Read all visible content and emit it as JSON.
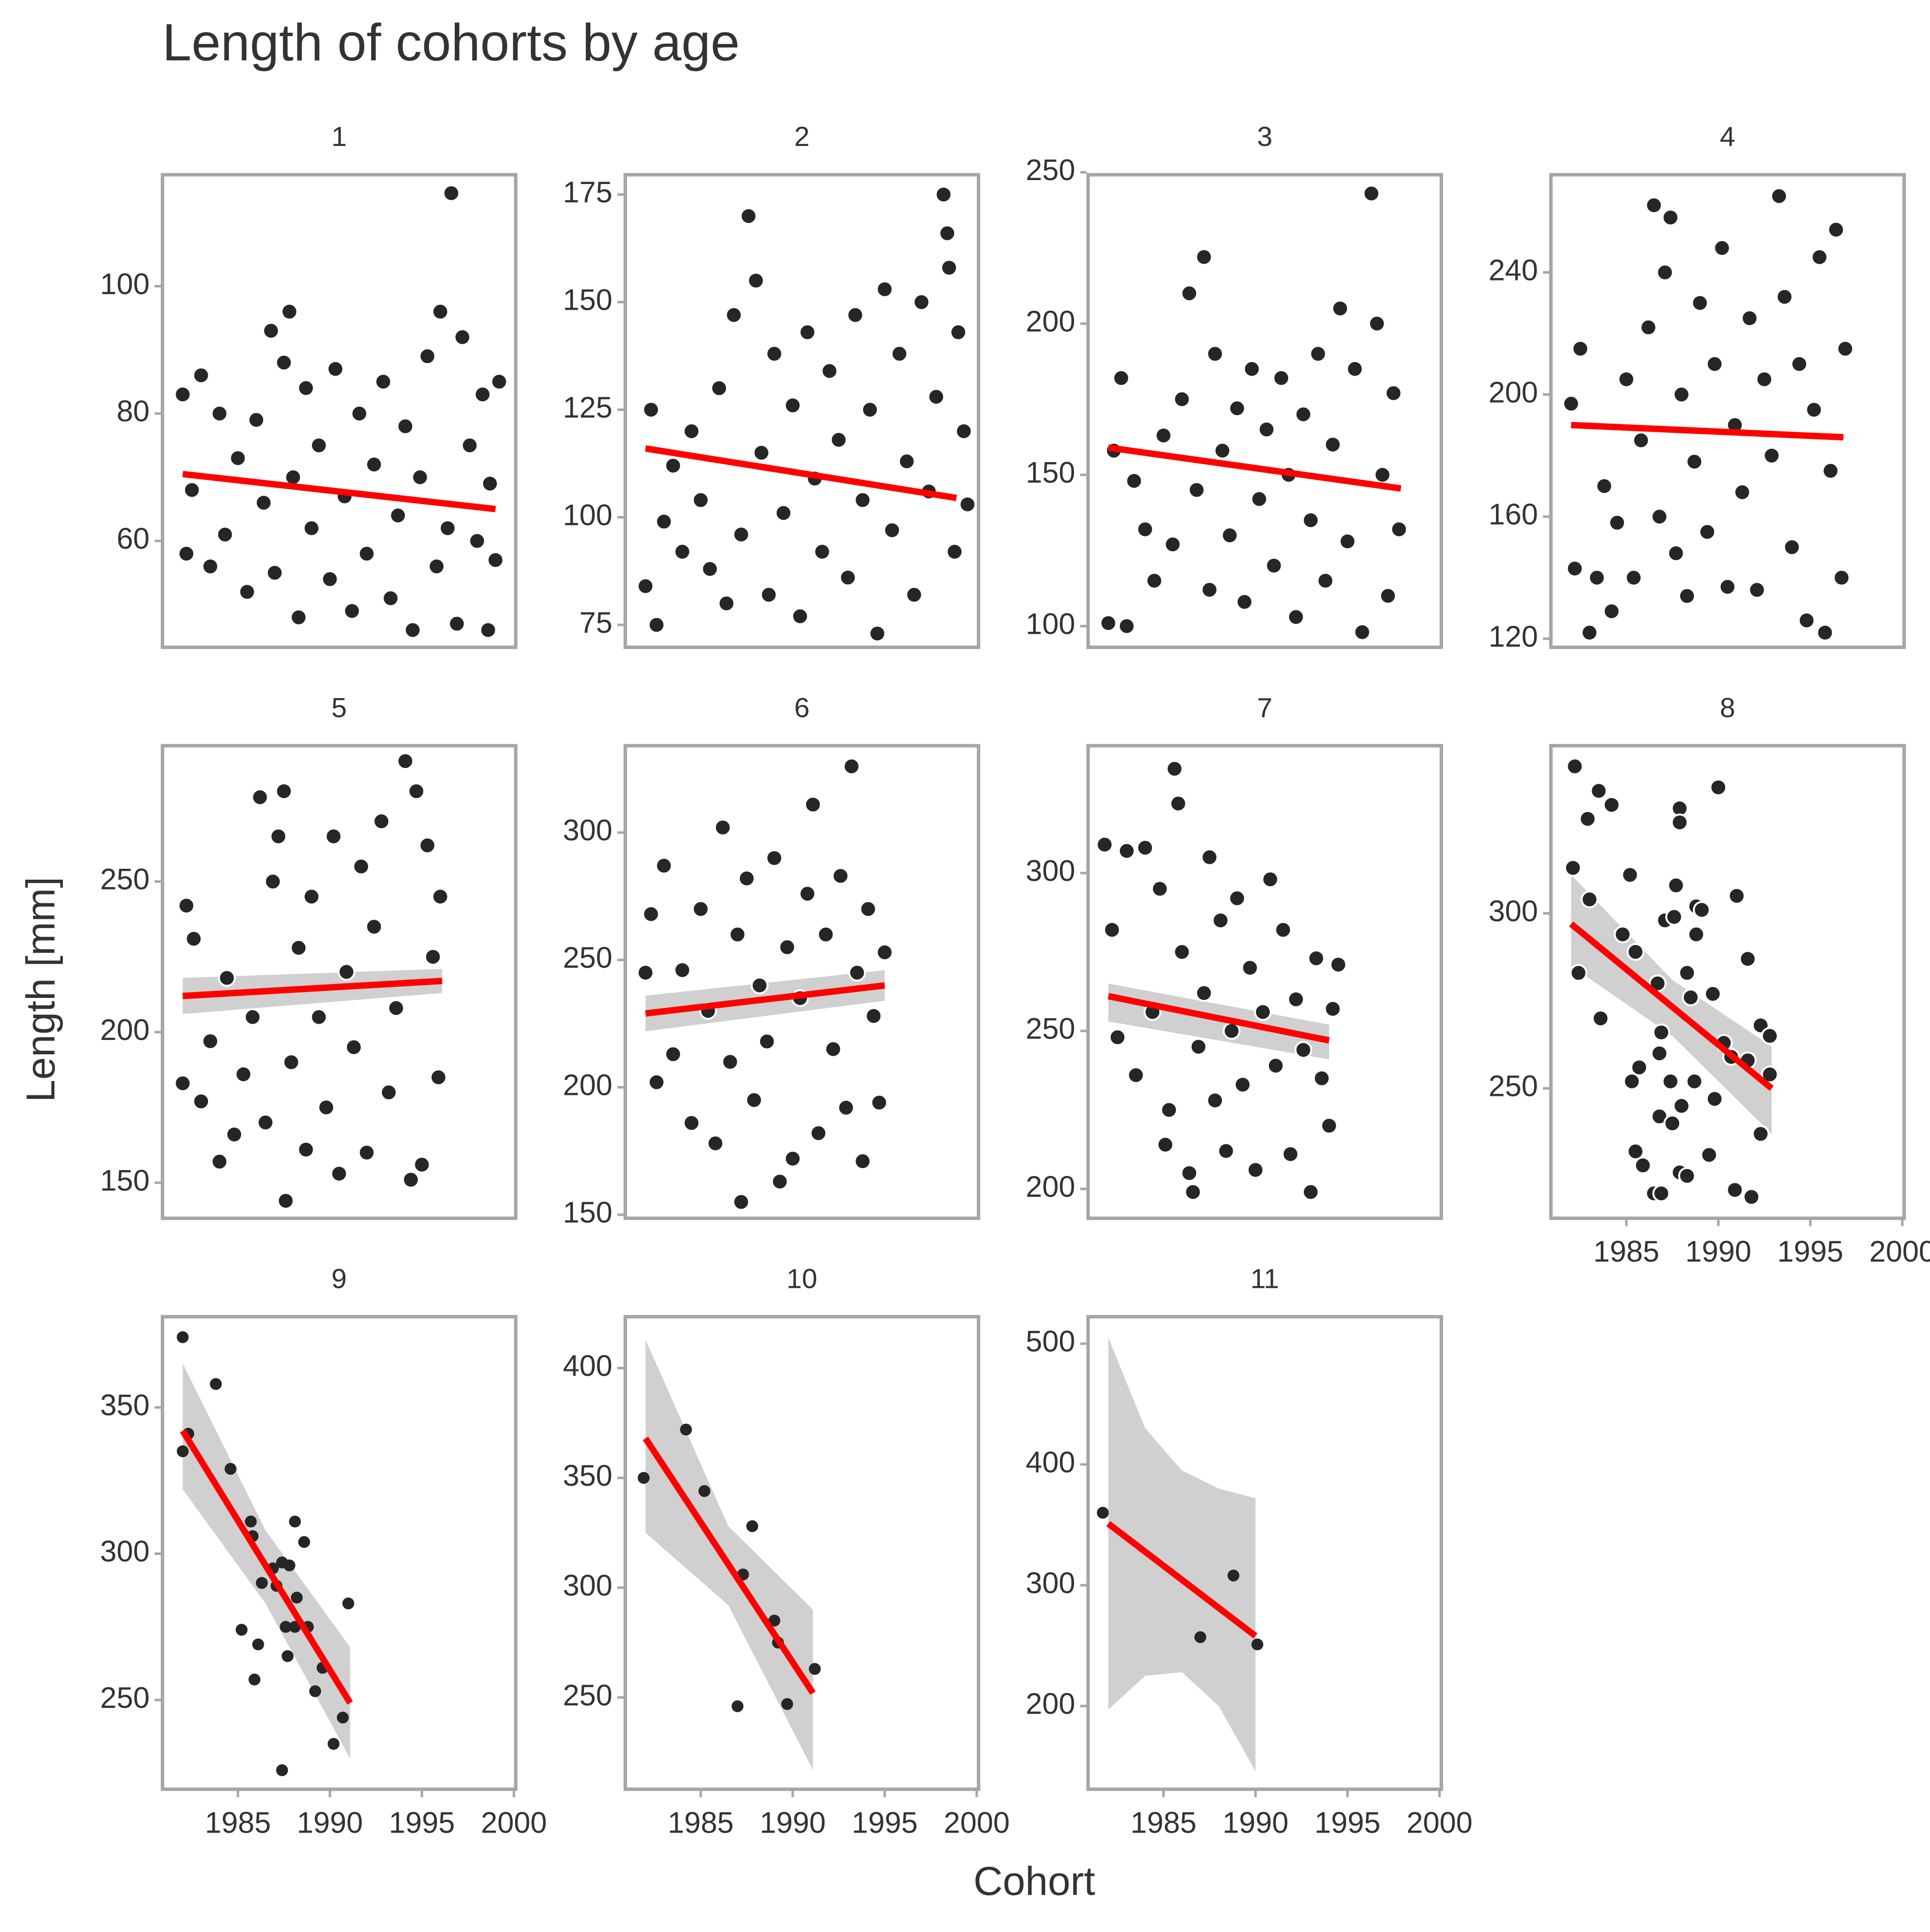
{
  "figure": {
    "title": "Length of cohorts by age",
    "x_label": "Cohort",
    "y_label": "Length [mm]",
    "point_color": "#262626",
    "fit_color": "#ff0000",
    "band_color": "#c8c8c8"
  },
  "chart_data": [
    {
      "type": "scatter",
      "title": "1",
      "xlim": [
        1980.9,
        2000.1
      ],
      "ylim": [
        43.3,
        117.5
      ],
      "yticks": [
        60,
        80,
        100
      ],
      "x": [
        1982,
        1982.2,
        1982.5,
        1983,
        1983.5,
        1984,
        1984.3,
        1985,
        1985.5,
        1986,
        1986.4,
        1986.8,
        1987,
        1987.5,
        1987.8,
        1988,
        1988.3,
        1988.7,
        1989,
        1989.4,
        1990,
        1990.3,
        1990.8,
        1991.2,
        1991.6,
        1992,
        1992.4,
        1992.9,
        1993.3,
        1993.7,
        1994.1,
        1994.5,
        1994.9,
        1995.3,
        1995.8,
        1996,
        1996.4,
        1996.6,
        1996.9,
        1997.2,
        1997.6,
        1998,
        1998.3,
        1998.7,
        1999,
        1999.2,
        1998.6
      ],
      "y": [
        83,
        58,
        68,
        86,
        56,
        80,
        61,
        73,
        52,
        79,
        66,
        93,
        55,
        88,
        96,
        70,
        48,
        84,
        62,
        75,
        54,
        87,
        67,
        49,
        80,
        58,
        72,
        85,
        51,
        64,
        78,
        46,
        70,
        89,
        56,
        96,
        62,
        114.6,
        47,
        92,
        75,
        60,
        83,
        69,
        57,
        85,
        46
      ],
      "fit": {
        "x": [
          1982,
          1999
        ],
        "y": [
          70.5,
          65
        ]
      }
    },
    {
      "type": "scatter",
      "title": "2",
      "xlim": [
        1980.9,
        2000.1
      ],
      "ylim": [
        69.8,
        179.6
      ],
      "yticks": [
        75,
        100,
        125,
        150,
        175
      ],
      "x": [
        1982,
        1982.3,
        1982.6,
        1983,
        1983.5,
        1984,
        1984.5,
        1985,
        1985.5,
        1986,
        1986.4,
        1986.8,
        1987.2,
        1987.6,
        1988,
        1988.3,
        1988.7,
        1989,
        1989.5,
        1990,
        1990.4,
        1990.8,
        1991.2,
        1991.6,
        1992,
        1992.5,
        1993,
        1993.4,
        1993.8,
        1994.2,
        1994.6,
        1995,
        1995.4,
        1995.8,
        1996.2,
        1996.6,
        1997,
        1997.4,
        1997.8,
        1998.2,
        1998.4,
        1998.5,
        1998.8,
        1999,
        1999.3,
        1999.5
      ],
      "y": [
        84,
        125,
        75,
        99,
        112,
        92,
        120,
        104,
        88,
        130,
        80,
        147,
        96,
        170,
        155,
        115,
        82,
        138,
        101,
        126,
        77,
        143,
        109,
        92,
        134,
        118,
        86,
        147,
        104,
        125,
        73,
        153,
        97,
        138,
        113,
        82,
        150,
        106,
        128,
        175,
        166,
        158,
        92,
        143,
        120,
        103
      ],
      "fit": {
        "x": [
          1982,
          1998.9
        ],
        "y": [
          116,
          104.5
        ]
      }
    },
    {
      "type": "scatter",
      "title": "3",
      "xlim": [
        1980.9,
        2000.1
      ],
      "ylim": [
        93.0,
        249.2
      ],
      "yticks": [
        100,
        150,
        200,
        250
      ],
      "x": [
        1982,
        1982.3,
        1982.7,
        1983,
        1983.4,
        1984,
        1984.5,
        1985,
        1985.5,
        1986,
        1986.4,
        1986.8,
        1987.2,
        1987.5,
        1987.8,
        1988.2,
        1988.6,
        1989,
        1989.4,
        1989.8,
        1990.2,
        1990.6,
        1991,
        1991.4,
        1991.8,
        1992.2,
        1992.6,
        1993,
        1993.4,
        1993.8,
        1994.2,
        1994.6,
        1995,
        1995.4,
        1995.8,
        1996.3,
        1996.6,
        1996.9,
        1997.2,
        1997.5,
        1997.8
      ],
      "y": [
        101,
        158,
        182,
        100,
        148,
        132,
        115,
        163,
        127,
        175,
        210,
        145,
        222,
        112,
        190,
        158,
        130,
        172,
        108,
        185,
        142,
        165,
        120,
        182,
        150,
        103,
        170,
        135,
        190,
        115,
        160,
        205,
        128,
        185,
        98,
        243,
        200,
        150,
        110,
        177,
        132
      ],
      "fit": {
        "x": [
          1982,
          1997.9
        ],
        "y": [
          159,
          145.5
        ]
      }
    },
    {
      "type": "scatter",
      "title": "4",
      "xlim": [
        1980.9,
        2000.1
      ],
      "ylim": [
        117.2,
        272
      ],
      "yticks": [
        120,
        160,
        200,
        240
      ],
      "x": [
        1982,
        1982.2,
        1982.5,
        1983,
        1983.4,
        1983.8,
        1984.2,
        1984.5,
        1985,
        1985.4,
        1985.8,
        1986.2,
        1986.5,
        1986.8,
        1987.1,
        1987.4,
        1987.7,
        1988,
        1988.3,
        1988.7,
        1989,
        1989.4,
        1989.8,
        1990.2,
        1990.5,
        1990.9,
        1991.3,
        1991.7,
        1992.1,
        1992.5,
        1992.9,
        1993.3,
        1993.6,
        1994,
        1994.4,
        1994.8,
        1995.2,
        1995.5,
        1995.8,
        1996.1,
        1996.4,
        1996.7,
        1996.9
      ],
      "y": [
        197,
        143,
        215,
        122,
        140,
        170,
        129,
        158,
        205,
        140,
        185,
        222,
        262,
        160,
        240,
        258,
        148,
        200,
        134,
        178,
        230,
        155,
        210,
        248,
        137,
        190,
        168,
        225,
        136,
        205,
        180,
        265,
        232,
        150,
        210,
        126,
        195,
        245,
        122,
        175,
        254,
        140,
        215
      ],
      "fit": {
        "x": [
          1982,
          1996.8
        ],
        "y": [
          190,
          186
        ]
      }
    },
    {
      "type": "scatter",
      "title": "5",
      "xlim": [
        1980.9,
        2000.1
      ],
      "ylim": [
        138.2,
        295.1
      ],
      "yticks": [
        150,
        200,
        250
      ],
      "x": [
        1982,
        1982.2,
        1982.6,
        1983,
        1983.5,
        1984,
        1984.4,
        1984.8,
        1985.3,
        1985.8,
        1986.2,
        1986.5,
        1986.9,
        1987.2,
        1987.5,
        1987.6,
        1987.9,
        1988.3,
        1988.7,
        1989,
        1989.4,
        1989.8,
        1990.2,
        1990.5,
        1990.9,
        1991.3,
        1991.7,
        1992,
        1992.4,
        1992.8,
        1993.2,
        1993.6,
        1994.1,
        1994.4,
        1994.7,
        1995,
        1995.3,
        1995.6,
        1995.9,
        1996
      ],
      "y": [
        183,
        242,
        231,
        177,
        197,
        157,
        218,
        166,
        186,
        205,
        278,
        170,
        250,
        265,
        280,
        144,
        190,
        228,
        161,
        245,
        205,
        175,
        265,
        153,
        220,
        195,
        255,
        160,
        235,
        270,
        180,
        208,
        290,
        151,
        280,
        156,
        262,
        225,
        185,
        245
      ],
      "fit": {
        "x": [
          1982,
          1996.1
        ],
        "y": [
          212,
          217
        ]
      },
      "band": {
        "x": [
          1982,
          1996.1
        ],
        "upper": [
          218,
          221
        ],
        "lower": [
          206,
          213
        ]
      }
    },
    {
      "type": "scatter",
      "title": "6",
      "xlim": [
        1980.9,
        2000.1
      ],
      "ylim": [
        148.6,
        334.1
      ],
      "yticks": [
        150,
        200,
        250,
        300
      ],
      "x": [
        1982,
        1982.3,
        1982.6,
        1983,
        1983.5,
        1984,
        1984.5,
        1985,
        1985.4,
        1985.8,
        1986.2,
        1986.6,
        1987,
        1987.2,
        1987.5,
        1987.9,
        1988.2,
        1988.6,
        1989,
        1989.3,
        1989.7,
        1990,
        1990.4,
        1990.8,
        1991.1,
        1991.4,
        1991.8,
        1992.2,
        1992.6,
        1992.9,
        1993.2,
        1993.5,
        1993.8,
        1994.1,
        1994.4,
        1994.7,
        1995
      ],
      "y": [
        245,
        268,
        202,
        287,
        213,
        246,
        186,
        270,
        230,
        178,
        302,
        210,
        260,
        155,
        282,
        195,
        240,
        218,
        290,
        163,
        255,
        172,
        235,
        276,
        311,
        182,
        260,
        215,
        283,
        192,
        326,
        245,
        171,
        270,
        228,
        194,
        253
      ],
      "fit": {
        "x": [
          1982,
          1995
        ],
        "y": [
          229,
          240
        ]
      },
      "band": {
        "x": [
          1982,
          1995
        ],
        "upper": [
          236,
          246
        ],
        "lower": [
          222,
          234
        ]
      }
    },
    {
      "type": "scatter",
      "title": "7",
      "xlim": [
        1980.9,
        2000.1
      ],
      "ylim": [
        190.7,
        340.3
      ],
      "yticks": [
        200,
        250,
        300
      ],
      "x": [
        1981.8,
        1982.2,
        1982.5,
        1983,
        1983.5,
        1984,
        1984.4,
        1984.8,
        1985.1,
        1985.3,
        1985.6,
        1985.8,
        1986,
        1986.4,
        1986.6,
        1986.9,
        1987.2,
        1987.5,
        1987.8,
        1988.1,
        1988.4,
        1988.7,
        1989,
        1989.3,
        1989.7,
        1990,
        1990.4,
        1990.8,
        1991.1,
        1991.5,
        1991.9,
        1992.2,
        1992.6,
        1993,
        1993.3,
        1993.6,
        1994,
        1994.2,
        1994.5
      ],
      "y": [
        309,
        282,
        248,
        307,
        236,
        308,
        256,
        295,
        214,
        225,
        333,
        322,
        275,
        205,
        199,
        245,
        262,
        305,
        228,
        285,
        212,
        250,
        292,
        233,
        270,
        206,
        256,
        298,
        239,
        282,
        211,
        260,
        244,
        199,
        273,
        235,
        220,
        257,
        271
      ],
      "fit": {
        "x": [
          1982,
          1994
        ],
        "y": [
          261,
          247
        ]
      },
      "band": {
        "x": [
          1982,
          1994
        ],
        "upper": [
          265,
          252
        ],
        "lower": [
          253,
          241
        ]
      }
    },
    {
      "type": "scatter",
      "title": "8",
      "xlim": [
        1980.9,
        2000.1
      ],
      "ylim": [
        212.9,
        347.9
      ],
      "yticks": [
        250,
        300
      ],
      "xticks": [
        1985,
        1990,
        1995,
        2000
      ],
      "x": [
        1982.2,
        1982.1,
        1982.9,
        1983.5,
        1984.2,
        1983,
        1982.4,
        1983.6,
        1985.2,
        1984.8,
        1985.5,
        1985.3,
        1985.7,
        1985.5,
        1985.9,
        1986.5,
        1986.9,
        1986.7,
        1987.1,
        1987.7,
        1987.9,
        1987.9,
        1987.6,
        1986.9,
        1987.4,
        1986.8,
        1987.5,
        1988,
        1987.9,
        1988.3,
        1988.5,
        1988.7,
        1988.8,
        1989.1,
        1988.8,
        1988.3,
        1989.5,
        1990,
        1990.3,
        1989.7,
        1991,
        1990.7,
        1990.9,
        1991.6,
        1991.8,
        1992.3,
        1992.8,
        1992.3,
        1992.8,
        1991.6,
        1989.8,
        1986.8
      ],
      "y": [
        342,
        313,
        327,
        335,
        331,
        304,
        283,
        270,
        311,
        294,
        289,
        252,
        256,
        232,
        228,
        220,
        220,
        280,
        298,
        308,
        330,
        326,
        299,
        266,
        252,
        242,
        240,
        245,
        226,
        283,
        276,
        252,
        302,
        301,
        294,
        225,
        231,
        336,
        263,
        277,
        305,
        259,
        221,
        287,
        219,
        268,
        265,
        237,
        254,
        258,
        247,
        260
      ],
      "fit": {
        "x": [
          1982,
          1992.9
        ],
        "y": [
          297,
          250
        ]
      },
      "band": {
        "x": [
          1982,
          1987.5,
          1992.9
        ],
        "upper": [
          311,
          281,
          262
        ],
        "lower": [
          285,
          265,
          237
        ]
      }
    },
    {
      "type": "scatter",
      "title": "9",
      "xlim": [
        1980.9,
        2000.1
      ],
      "ylim": [
        219.5,
        381.0
      ],
      "yticks": [
        250,
        300,
        350
      ],
      "xticks": [
        1985,
        1990,
        1995,
        2000
      ],
      "x": [
        1982,
        1982,
        1982.3,
        1983.8,
        1984.6,
        1985.7,
        1985.8,
        1986.3,
        1985.2,
        1986.1,
        1985.9,
        1986.9,
        1987.1,
        1987.4,
        1987.8,
        1988.1,
        1988.2,
        1988.6,
        1988.1,
        1988.8,
        1987.7,
        1987.6,
        1989.2,
        1989.6,
        1990.2,
        1990.7,
        1991,
        1987.4
      ],
      "y": [
        374,
        335,
        341,
        358,
        329,
        311,
        306,
        290,
        274,
        269,
        257,
        295,
        289,
        297,
        296,
        311,
        285,
        304,
        275,
        275,
        265,
        275,
        253,
        261,
        235,
        244,
        283,
        226
      ],
      "fit": {
        "x": [
          1982,
          1991.1
        ],
        "y": [
          342,
          249
        ]
      },
      "band": {
        "x": [
          1982,
          1986.5,
          1991.1
        ],
        "upper": [
          365,
          308,
          268
        ],
        "lower": [
          322,
          283,
          230
        ]
      }
    },
    {
      "type": "scatter",
      "title": "10",
      "xlim": [
        1980.9,
        2000.1
      ],
      "ylim": [
        208.2,
        423.4
      ],
      "yticks": [
        250,
        300,
        350,
        400
      ],
      "xticks": [
        1985,
        1990,
        1995,
        2000
      ],
      "x": [
        1981.9,
        1984.2,
        1985.2,
        1987.8,
        1987.3,
        1989,
        1989.2,
        1987,
        1989.7,
        1991.2
      ],
      "y": [
        350,
        372,
        344,
        328,
        306,
        285,
        275,
        246,
        247,
        263
      ],
      "fit": {
        "x": [
          1982,
          1991.1
        ],
        "y": [
          368,
          252
        ]
      },
      "band": {
        "x": [
          1982,
          1986.5,
          1991.1
        ],
        "upper": [
          413,
          328,
          290
        ],
        "lower": [
          325,
          292,
          217
        ]
      }
    },
    {
      "type": "scatter",
      "title": "11",
      "xlim": [
        1980.9,
        2000.1
      ],
      "ylim": [
        131.1,
        522.3
      ],
      "yticks": [
        200,
        300,
        400,
        500
      ],
      "xticks": [
        1985,
        1990,
        1995,
        2000
      ],
      "x": [
        1981.7,
        1987,
        1988.8,
        1990.1
      ],
      "y": [
        360,
        257,
        308,
        251
      ],
      "fit": {
        "x": [
          1982,
          1990
        ],
        "y": [
          351,
          258
        ]
      },
      "band": {
        "x": [
          1982,
          1984,
          1986,
          1988,
          1990
        ],
        "upper": [
          505,
          430,
          395,
          380,
          372
        ],
        "lower": [
          197,
          225,
          228,
          200,
          146
        ]
      }
    }
  ]
}
